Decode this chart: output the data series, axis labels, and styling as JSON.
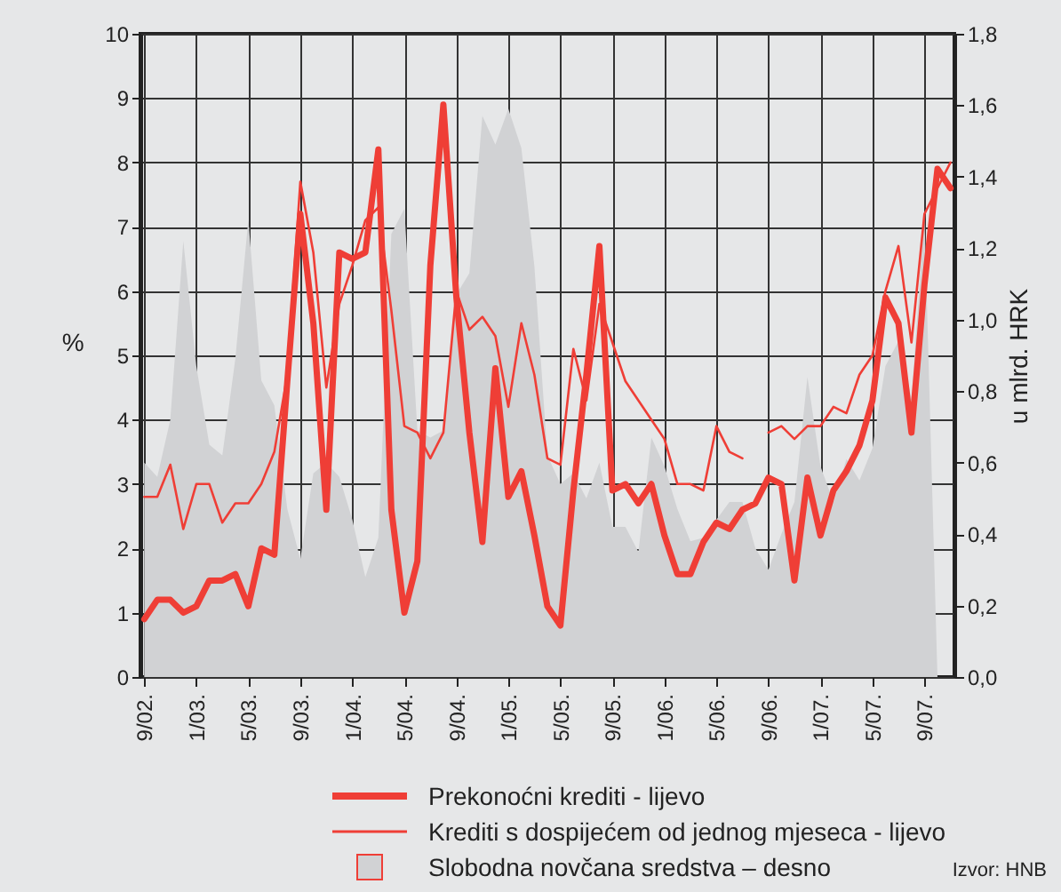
{
  "chart_data": {
    "type": "line",
    "ylabel": "%",
    "y2label": "u mlrd. HRK",
    "annotations": [
      "Izvor: HNB"
    ],
    "categories": [
      "9/02.",
      null,
      null,
      null,
      "1/03.",
      null,
      null,
      null,
      "5/03.",
      null,
      null,
      null,
      "9/03.",
      null,
      null,
      null,
      "1/04.",
      null,
      null,
      null,
      "5/04.",
      null,
      null,
      null,
      "9/04.",
      null,
      null,
      null,
      "1/05.",
      null,
      null,
      null,
      "5/05.",
      null,
      null,
      null,
      "9/05.",
      null,
      null,
      null,
      "1/06.",
      null,
      null,
      null,
      "5/06.",
      null,
      null,
      null,
      "9/06.",
      null,
      null,
      null,
      "1/07.",
      null,
      null,
      null,
      "5/07.",
      null,
      null,
      null,
      "9/07.",
      null,
      null
    ],
    "series": [
      {
        "name": "Prekonoćni krediti - lijevo",
        "type": "line",
        "color": "#ef3e36",
        "values": [
          0.9,
          1.2,
          1.2,
          1.0,
          1.1,
          1.5,
          1.5,
          1.6,
          1.1,
          2.0,
          1.9,
          4.6,
          7.2,
          5.5,
          2.6,
          6.6,
          6.5,
          6.6,
          8.2,
          2.6,
          1.0,
          1.8,
          6.4,
          8.9,
          5.9,
          3.8,
          2.1,
          4.8,
          2.8,
          3.2,
          2.2,
          1.1,
          0.8,
          2.9,
          4.7,
          6.7,
          2.9,
          3.0,
          2.7,
          3.0,
          2.2,
          1.6,
          1.6,
          2.1,
          2.4,
          2.3,
          2.6,
          2.7,
          3.1,
          3.0,
          1.5,
          3.1,
          2.2,
          2.9,
          3.2,
          3.6,
          4.3,
          5.9,
          5.5,
          3.8,
          6.1,
          7.9,
          7.6
        ]
      },
      {
        "name": "Krediti s dospijećem od jednog mjeseca - lijevo",
        "type": "line",
        "color": "#ef3e36",
        "values": [
          2.8,
          2.8,
          3.3,
          2.3,
          3.0,
          3.0,
          2.4,
          2.7,
          2.7,
          3.0,
          3.5,
          4.7,
          7.7,
          6.6,
          4.5,
          5.8,
          6.4,
          7.1,
          7.3,
          5.7,
          3.9,
          3.8,
          3.4,
          3.8,
          6.0,
          5.4,
          5.6,
          5.3,
          4.2,
          5.5,
          4.7,
          3.4,
          3.3,
          5.1,
          4.3,
          5.8,
          5.2,
          4.6,
          4.3,
          4.0,
          3.7,
          3.0,
          3.0,
          2.9,
          3.9,
          3.5,
          3.4,
          null,
          3.8,
          3.9,
          3.7,
          3.9,
          3.9,
          4.2,
          4.1,
          4.7,
          5.0,
          6.0,
          6.7,
          5.2,
          7.2,
          7.6,
          8.0
        ]
      },
      {
        "name": "Slobodna novčana sredstva – desno",
        "type": "area",
        "axis": "y2",
        "color": "#d1d2d4",
        "values": [
          0.6,
          0.56,
          0.72,
          1.22,
          0.87,
          0.65,
          0.62,
          0.89,
          1.28,
          0.83,
          0.76,
          0.47,
          0.33,
          0.57,
          0.6,
          0.56,
          0.44,
          0.28,
          0.39,
          1.24,
          1.31,
          0.69,
          0.67,
          0.69,
          1.07,
          1.13,
          1.57,
          1.49,
          1.59,
          1.48,
          1.15,
          0.62,
          0.54,
          0.57,
          0.5,
          0.6,
          0.42,
          0.42,
          0.35,
          0.67,
          0.59,
          0.47,
          0.38,
          0.39,
          0.44,
          0.49,
          0.49,
          0.36,
          0.3,
          0.4,
          0.49,
          0.84,
          0.59,
          0.49,
          0.61,
          0.55,
          0.64,
          0.87,
          0.94,
          0.78,
          1.29,
          0,
          null
        ]
      }
    ],
    "ylim": [
      0,
      10
    ],
    "yticks": [
      0,
      1,
      2,
      3,
      4,
      5,
      6,
      7,
      8,
      9,
      10
    ],
    "y2lim": [
      0,
      1.8
    ],
    "y2ticks": [
      {
        "value": 0,
        "label": "0,0"
      },
      {
        "value": 0.2,
        "label": "0,2"
      },
      {
        "value": 0.4,
        "label": "0,4"
      },
      {
        "value": 0.6,
        "label": "0,6"
      },
      {
        "value": 0.8,
        "label": "0,8"
      },
      {
        "value": 1.0,
        "label": "1,0"
      },
      {
        "value": 1.2,
        "label": "1,2"
      },
      {
        "value": 1.4,
        "label": "1,4"
      },
      {
        "value": 1.6,
        "label": "1,6"
      },
      {
        "value": 1.8,
        "label": "1,8"
      }
    ],
    "grid": true,
    "legend": "bottom"
  }
}
